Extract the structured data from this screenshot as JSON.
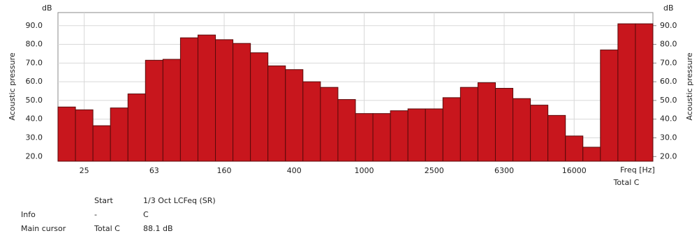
{
  "chart_data": {
    "type": "bar",
    "y_label": "Acoustic pressure",
    "y_unit": "dB",
    "y2_label": "Acoustic pressure",
    "y2_unit": "dB",
    "x_label": "Freq [Hz]",
    "x_note": "Total C",
    "categories": [
      null,
      "25",
      null,
      null,
      null,
      "63",
      null,
      null,
      null,
      "160",
      null,
      null,
      null,
      "400",
      null,
      null,
      null,
      "1000",
      null,
      null,
      null,
      "2500",
      null,
      null,
      null,
      "6300",
      null,
      null,
      null,
      "16000",
      null,
      null,
      null,
      null
    ],
    "values": [
      46.5,
      45,
      36.5,
      46,
      53.5,
      71.5,
      72,
      83.5,
      85,
      82.5,
      80.5,
      75.5,
      68.5,
      66.5,
      60,
      57,
      50.5,
      43,
      43,
      44.5,
      45.5,
      45.5,
      51.5,
      57,
      59.5,
      56.5,
      51,
      47.5,
      42,
      31,
      25,
      77,
      91,
      91
    ],
    "color": "#c8161d",
    "ylim": [
      17.5,
      97
    ],
    "yticks": [
      {
        "value": 20,
        "label": "20.0"
      },
      {
        "value": 30,
        "label": "30.0"
      },
      {
        "value": 40,
        "label": "40.0"
      },
      {
        "value": 50,
        "label": "50.0"
      },
      {
        "value": 60,
        "label": "60.0"
      },
      {
        "value": 70,
        "label": "70.0"
      },
      {
        "value": 80,
        "label": "80.0"
      },
      {
        "value": 90,
        "label": "90.0"
      }
    ],
    "y2lim": [
      17.5,
      97
    ],
    "y2ticks": [
      {
        "value": 20,
        "label": "20.0"
      },
      {
        "value": 30,
        "label": "30.0"
      },
      {
        "value": 40,
        "label": "40.0"
      },
      {
        "value": 50,
        "label": "50.0"
      },
      {
        "value": 60,
        "label": "60.0"
      },
      {
        "value": 70,
        "label": "70.0"
      },
      {
        "value": 80,
        "label": "80.0"
      },
      {
        "value": 90,
        "label": "90.0"
      }
    ],
    "grid": true
  },
  "info": {
    "rows": [
      [
        "",
        "Start",
        "1/3 Oct LCFeq (SR)"
      ],
      [
        "Info",
        "-",
        "C"
      ],
      [
        "Main cursor",
        "Total C",
        "88.1 dB"
      ]
    ]
  }
}
